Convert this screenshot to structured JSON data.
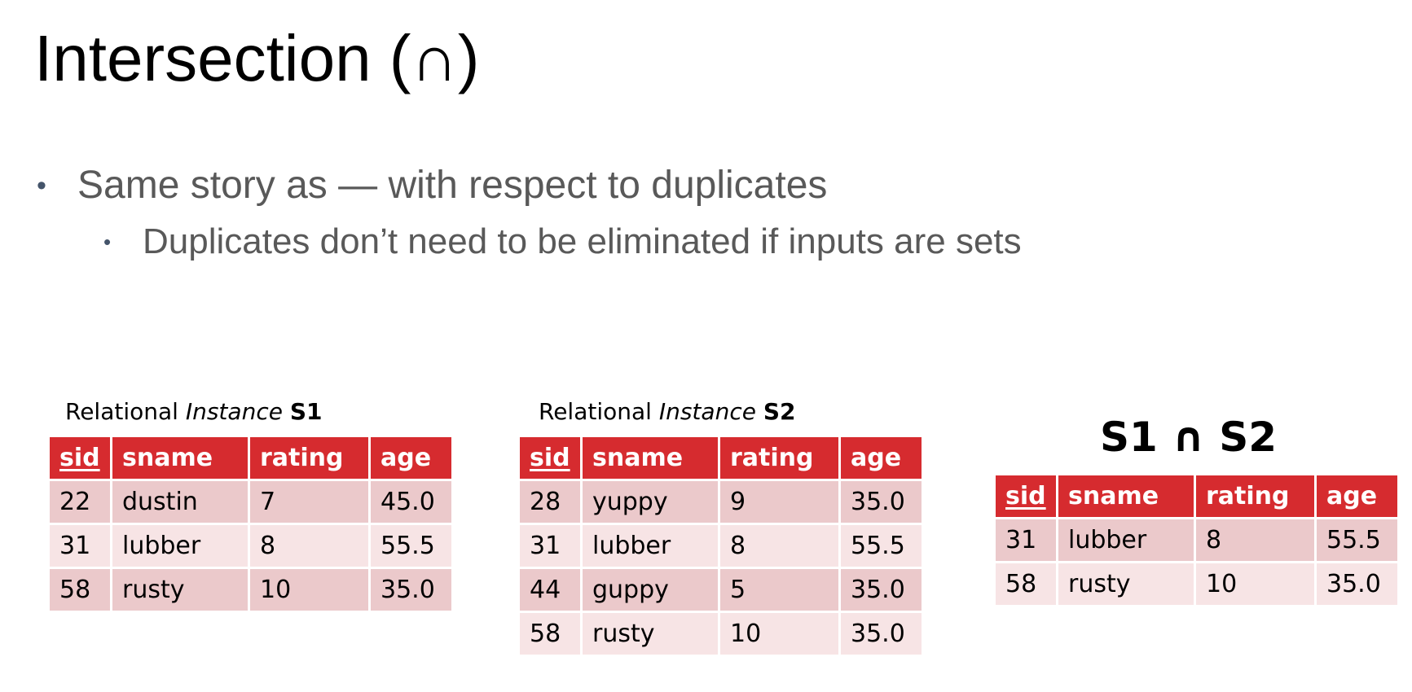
{
  "title": "Intersection (∩)",
  "bullets": {
    "level1": "Same story as — with respect to duplicates",
    "level2": "Duplicates don’t need to be eliminated if inputs are sets"
  },
  "columns": [
    "sid",
    "sname",
    "rating",
    "age"
  ],
  "s1": {
    "caption_prefix": "Relational ",
    "caption_italic": "Instance",
    "caption_bold": "S1",
    "rows": [
      [
        "22",
        "dustin",
        "7",
        "45.0"
      ],
      [
        "31",
        "lubber",
        "8",
        "55.5"
      ],
      [
        "58",
        "rusty",
        "10",
        "35.0"
      ]
    ]
  },
  "s2": {
    "caption_prefix": "Relational ",
    "caption_italic": "Instance",
    "caption_bold": "S2",
    "rows": [
      [
        "28",
        "yuppy",
        "9",
        "35.0"
      ],
      [
        "31",
        "lubber",
        "8",
        "55.5"
      ],
      [
        "44",
        "guppy",
        "5",
        "35.0"
      ],
      [
        "58",
        "rusty",
        "10",
        "35.0"
      ]
    ]
  },
  "result": {
    "title": "S1 ∩ S2",
    "rows": [
      [
        "31",
        "lubber",
        "8",
        "55.5"
      ],
      [
        "58",
        "rusty",
        "10",
        "35.0"
      ]
    ]
  },
  "colors": {
    "header_red": "#d62b2f",
    "row_dark": "#ebc9cb",
    "row_light": "#f7e4e5",
    "bullet_text": "#595959"
  }
}
